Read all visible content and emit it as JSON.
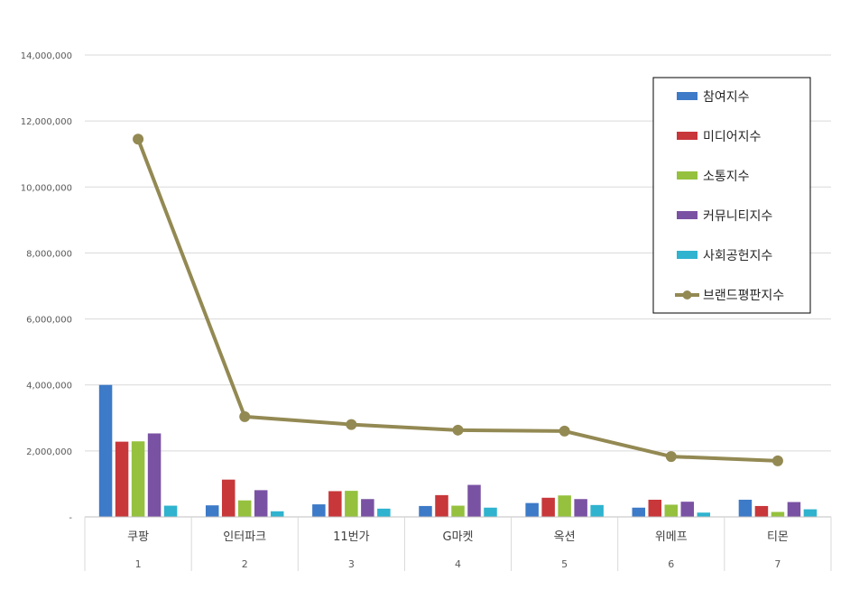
{
  "chart_data": {
    "type": "bar",
    "categories": [
      "쿠팡",
      "인터파크",
      "11번가",
      "G마켓",
      "옥션",
      "위메프",
      "티몬"
    ],
    "category_index": [
      "1",
      "2",
      "3",
      "4",
      "5",
      "6",
      "7"
    ],
    "ylim": [
      0,
      14000000
    ],
    "yticks": [
      {
        "value": 0,
        "label": "-"
      },
      {
        "value": 2000000,
        "label": "2,000,000"
      },
      {
        "value": 4000000,
        "label": "4,000,000"
      },
      {
        "value": 6000000,
        "label": "6,000,000"
      },
      {
        "value": 8000000,
        "label": "8,000,000"
      },
      {
        "value": 10000000,
        "label": "10,000,000"
      },
      {
        "value": 12000000,
        "label": "12,000,000"
      },
      {
        "value": 14000000,
        "label": "14,000,000"
      }
    ],
    "grid": true,
    "legend_position": "top-right",
    "series": [
      {
        "name": "참여지수",
        "type": "bar",
        "color": "#3d7ac7",
        "values": [
          4000000,
          350000,
          380000,
          330000,
          420000,
          280000,
          520000
        ]
      },
      {
        "name": "미디어지수",
        "type": "bar",
        "color": "#c8373a",
        "values": [
          2280000,
          1130000,
          780000,
          660000,
          580000,
          520000,
          330000
        ]
      },
      {
        "name": "소통지수",
        "type": "bar",
        "color": "#95c13e",
        "values": [
          2290000,
          500000,
          790000,
          340000,
          650000,
          370000,
          150000
        ]
      },
      {
        "name": "커뮤니티지수",
        "type": "bar",
        "color": "#7a52a3",
        "values": [
          2530000,
          810000,
          540000,
          970000,
          540000,
          460000,
          450000
        ]
      },
      {
        "name": "사회공헌지수",
        "type": "bar",
        "color": "#2fb3cf",
        "values": [
          340000,
          170000,
          250000,
          280000,
          360000,
          130000,
          230000
        ]
      },
      {
        "name": "브랜드평판지수",
        "type": "line",
        "color": "#938953",
        "values": [
          11450000,
          3040000,
          2800000,
          2630000,
          2600000,
          1830000,
          1700000
        ]
      }
    ]
  }
}
